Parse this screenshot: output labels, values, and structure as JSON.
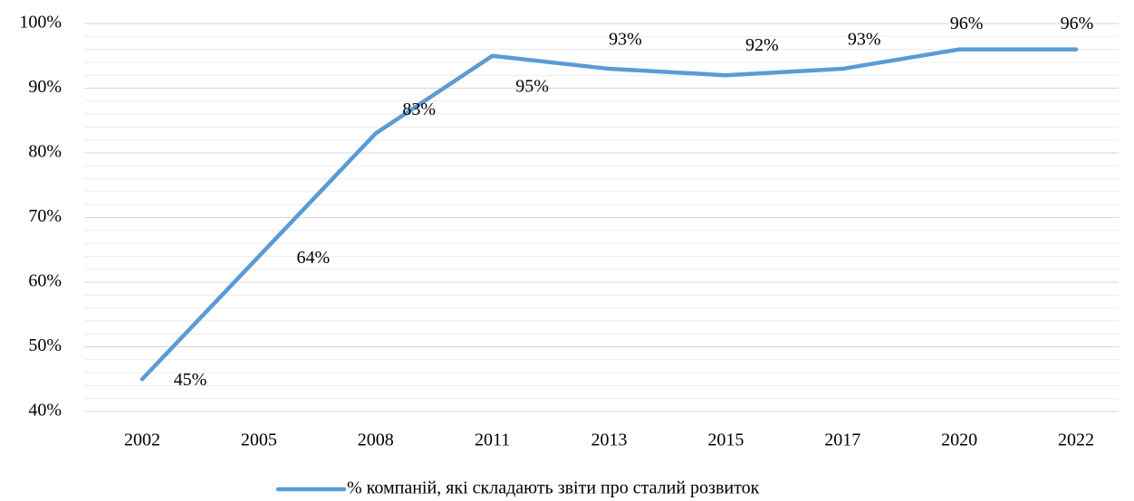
{
  "chart_data": {
    "type": "line",
    "categories": [
      "2002",
      "2005",
      "2008",
      "2011",
      "2013",
      "2015",
      "2017",
      "2020",
      "2022"
    ],
    "series": [
      {
        "name": "% компаній, які складають звіти про сталий розвиток",
        "color": "#5b9bd5",
        "values": [
          45,
          64,
          83,
          95,
          93,
          92,
          93,
          96,
          96
        ],
        "value_labels": [
          "45%",
          "64%",
          "83%",
          "95%",
          "93%",
          "92%",
          "93%",
          "96%",
          "96%"
        ]
      }
    ],
    "ylim": [
      40,
      100
    ],
    "yticks": [
      {
        "value": 40,
        "label": "40%"
      },
      {
        "value": 50,
        "label": "50%"
      },
      {
        "value": 60,
        "label": "60%"
      },
      {
        "value": 70,
        "label": "70%"
      },
      {
        "value": 80,
        "label": "80%"
      },
      {
        "value": 90,
        "label": "90%"
      },
      {
        "value": 100,
        "label": "100%"
      }
    ],
    "minor_yticks": [
      42,
      44,
      46,
      48,
      52,
      54,
      56,
      58,
      62,
      64,
      66,
      68,
      72,
      74,
      76,
      78,
      82,
      84,
      86,
      88,
      92,
      94,
      96,
      98
    ],
    "grid": true,
    "legend": "bottom"
  }
}
